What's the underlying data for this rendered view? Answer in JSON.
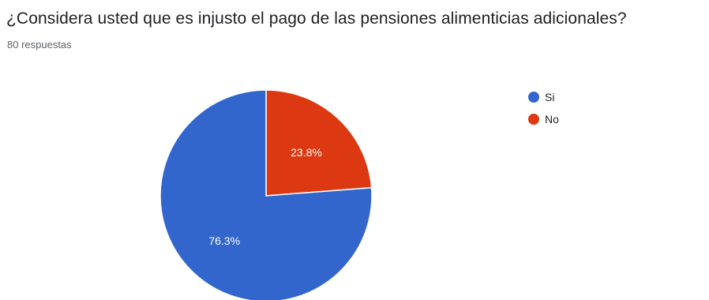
{
  "question": {
    "title": "¿Considera usted que es injusto el pago de las pensiones alimenticias adicionales?",
    "response_count": "80 respuestas"
  },
  "chart_data": {
    "type": "pie",
    "title": "¿Considera usted que es injusto el pago de las pensiones alimenticias adicionales?",
    "slices": [
      {
        "label": "Si",
        "value": 76.3,
        "display": "76.3%",
        "color": "#3366cc"
      },
      {
        "label": "No",
        "value": 23.8,
        "display": "23.8%",
        "color": "#dc3912"
      }
    ],
    "legend_position": "top-right"
  }
}
